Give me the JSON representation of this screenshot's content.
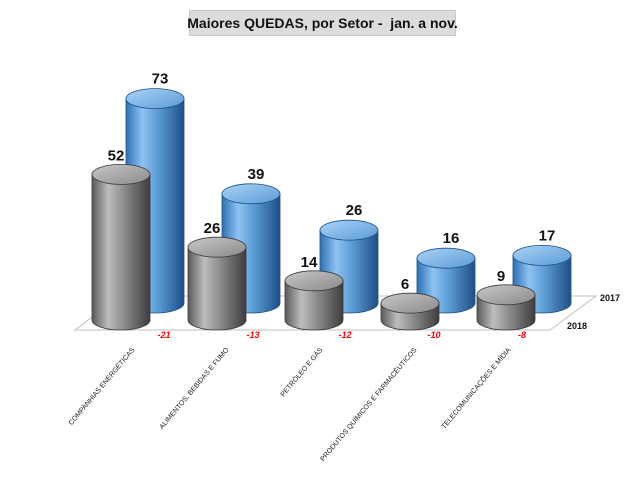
{
  "chart_data": {
    "type": "bar",
    "title": "Maiores QUEDAS, por Setor -  jan. a nov.",
    "categories": [
      "COMPANHIAS ENERGÉTICAS",
      "ALIMENTOS, BEBIDAS E FUMO",
      "PETRÓLEO E GÁS",
      "PRODUTOS QUÍMICOS E FARMACÊUTICOS",
      "TELECOMUNICAÇÕES E MÍDIA"
    ],
    "series": [
      {
        "name": "2017",
        "values": [
          73,
          39,
          26,
          16,
          17
        ],
        "color": "#5b9bd5"
      },
      {
        "name": "2018",
        "values": [
          52,
          26,
          14,
          6,
          9
        ],
        "color": "#8c8c8c"
      }
    ],
    "differences": [
      "-21",
      "-13",
      "-12",
      "-10",
      "-8"
    ],
    "difference_color": "#ff0000",
    "ylim": [
      0,
      80
    ],
    "grid": false,
    "legend": "series labels at right end of depth axis"
  }
}
